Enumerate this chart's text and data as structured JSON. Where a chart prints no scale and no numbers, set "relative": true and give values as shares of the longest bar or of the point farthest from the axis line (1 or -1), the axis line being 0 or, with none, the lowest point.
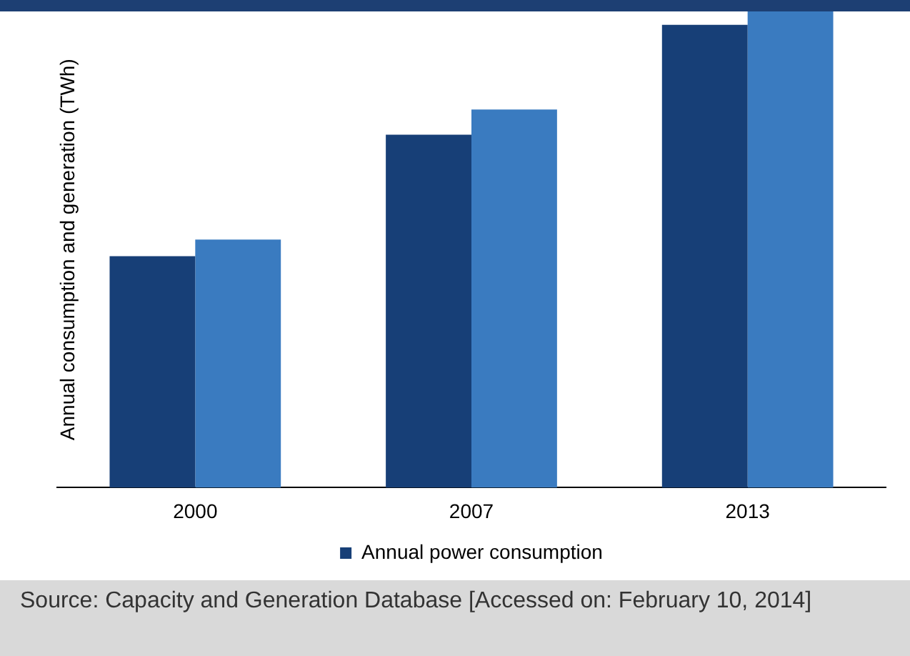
{
  "chart_data": {
    "type": "bar",
    "ylabel": "Annual consumption and generation (TWh)",
    "categories": [
      "2000",
      "2007",
      "2013"
    ],
    "relative": true,
    "legend": "bottom",
    "grid": false,
    "series": [
      {
        "name": "Annual power consumption",
        "color": "#173f77",
        "values": [
          0.486,
          0.741,
          0.972
        ]
      },
      {
        "color": "#3a7bc0",
        "values": [
          0.521,
          0.794,
          1
        ]
      }
    ],
    "annotations": [
      "Source: Capacity and Generation Database [Accessed on: February 10, 2014]"
    ]
  }
}
